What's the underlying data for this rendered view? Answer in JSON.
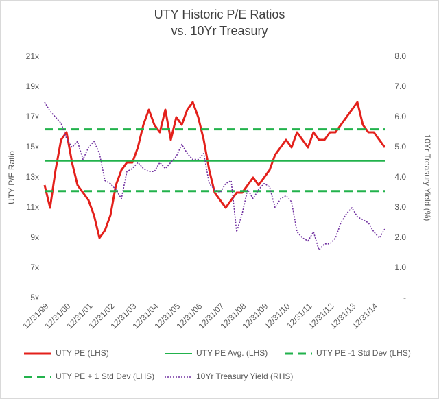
{
  "chart_data": {
    "type": "line",
    "title": "UTY Historic P/E Ratios",
    "subtitle": "vs. 10Yr Treasury",
    "y_label": "UTY P/E Ratio",
    "y2_label": "10Yr Treasury Yield (%)",
    "categories": [
      "12/31/99",
      null,
      null,
      null,
      "12/31/00",
      null,
      null,
      null,
      "12/31/01",
      null,
      null,
      null,
      "12/31/02",
      null,
      null,
      null,
      "12/31/03",
      null,
      null,
      null,
      "12/31/04",
      null,
      null,
      null,
      "12/31/05",
      null,
      null,
      null,
      "12/31/06",
      null,
      null,
      null,
      "12/31/07",
      null,
      null,
      null,
      "12/31/08",
      null,
      null,
      null,
      "12/31/09",
      null,
      null,
      null,
      "12/31/10",
      null,
      null,
      null,
      "12/31/11",
      null,
      null,
      null,
      "12/31/12",
      null,
      null,
      null,
      "12/31/13",
      null,
      null,
      null,
      "12/31/14",
      null,
      null
    ],
    "ylim": [
      5,
      21
    ],
    "yticks": [
      {
        "value": 5,
        "label": "5x"
      },
      {
        "value": 7,
        "label": "7x"
      },
      {
        "value": 9,
        "label": "9x"
      },
      {
        "value": 11,
        "label": "11x"
      },
      {
        "value": 13,
        "label": "13x"
      },
      {
        "value": 15,
        "label": "15x"
      },
      {
        "value": 17,
        "label": "17x"
      },
      {
        "value": 19,
        "label": "19x"
      },
      {
        "value": 21,
        "label": "21x"
      }
    ],
    "y2lim": [
      0,
      8
    ],
    "y2ticks": [
      {
        "value": 0,
        "label": "-"
      },
      {
        "value": 1,
        "label": "1.0"
      },
      {
        "value": 2,
        "label": "2.0"
      },
      {
        "value": 3,
        "label": "3.0"
      },
      {
        "value": 4,
        "label": "4.0"
      },
      {
        "value": 5,
        "label": "5.0"
      },
      {
        "value": 6,
        "label": "6.0"
      },
      {
        "value": 7,
        "label": "7.0"
      },
      {
        "value": 8,
        "label": "8.0"
      }
    ],
    "grid": false,
    "legend": "bottom",
    "series": [
      {
        "name": "UTY PE (LHS)",
        "color": "#e3201b",
        "style": "solid",
        "width": 3,
        "values": [
          12.5,
          11,
          13.5,
          15.5,
          16,
          14,
          12.5,
          12,
          11.5,
          10.5,
          9,
          9.5,
          10.5,
          12.5,
          13.5,
          14,
          14,
          15,
          16.5,
          17.5,
          16.5,
          16,
          17.5,
          15.5,
          17,
          16.5,
          17.5,
          18,
          17,
          15.5,
          13.5,
          12,
          11.5,
          11,
          11.5,
          12,
          12,
          12.5,
          13,
          12.5,
          13,
          13.5,
          14.5,
          15,
          15.5,
          15,
          16,
          15.5,
          15,
          16,
          15.5,
          15.5,
          16,
          16,
          16.5,
          17,
          17.5,
          18,
          16.5,
          16,
          16,
          15.5,
          15
        ]
      },
      {
        "name": "UTY PE Avg. (LHS)",
        "color": "#22b24c",
        "style": "solid",
        "width": 2,
        "values": [
          14.1,
          14.1,
          14.1,
          14.1,
          14.1,
          14.1,
          14.1,
          14.1,
          14.1,
          14.1,
          14.1,
          14.1,
          14.1,
          14.1,
          14.1,
          14.1,
          14.1,
          14.1,
          14.1,
          14.1,
          14.1,
          14.1,
          14.1,
          14.1,
          14.1,
          14.1,
          14.1,
          14.1,
          14.1,
          14.1,
          14.1,
          14.1,
          14.1,
          14.1,
          14.1,
          14.1,
          14.1,
          14.1,
          14.1,
          14.1,
          14.1,
          14.1,
          14.1,
          14.1,
          14.1,
          14.1,
          14.1,
          14.1,
          14.1,
          14.1,
          14.1,
          14.1,
          14.1,
          14.1,
          14.1,
          14.1,
          14.1,
          14.1,
          14.1,
          14.1,
          14.1,
          14.1,
          14.1
        ]
      },
      {
        "name": "UTY PE -1 Std Dev (LHS)",
        "color": "#22b24c",
        "style": "dashed",
        "width": 3,
        "values": [
          12.1,
          12.1,
          12.1,
          12.1,
          12.1,
          12.1,
          12.1,
          12.1,
          12.1,
          12.1,
          12.1,
          12.1,
          12.1,
          12.1,
          12.1,
          12.1,
          12.1,
          12.1,
          12.1,
          12.1,
          12.1,
          12.1,
          12.1,
          12.1,
          12.1,
          12.1,
          12.1,
          12.1,
          12.1,
          12.1,
          12.1,
          12.1,
          12.1,
          12.1,
          12.1,
          12.1,
          12.1,
          12.1,
          12.1,
          12.1,
          12.1,
          12.1,
          12.1,
          12.1,
          12.1,
          12.1,
          12.1,
          12.1,
          12.1,
          12.1,
          12.1,
          12.1,
          12.1,
          12.1,
          12.1,
          12.1,
          12.1,
          12.1,
          12.1,
          12.1,
          12.1,
          12.1,
          12.1
        ]
      },
      {
        "name": "UTY PE + 1 Std Dev (LHS)",
        "color": "#22b24c",
        "style": "dashed",
        "width": 3,
        "values": [
          16.2,
          16.2,
          16.2,
          16.2,
          16.2,
          16.2,
          16.2,
          16.2,
          16.2,
          16.2,
          16.2,
          16.2,
          16.2,
          16.2,
          16.2,
          16.2,
          16.2,
          16.2,
          16.2,
          16.2,
          16.2,
          16.2,
          16.2,
          16.2,
          16.2,
          16.2,
          16.2,
          16.2,
          16.2,
          16.2,
          16.2,
          16.2,
          16.2,
          16.2,
          16.2,
          16.2,
          16.2,
          16.2,
          16.2,
          16.2,
          16.2,
          16.2,
          16.2,
          16.2,
          16.2,
          16.2,
          16.2,
          16.2,
          16.2,
          16.2,
          16.2,
          16.2,
          16.2,
          16.2,
          16.2,
          16.2,
          16.2,
          16.2,
          16.2,
          16.2,
          16.2,
          16.2,
          16.2
        ]
      },
      {
        "name": "10Yr Treasury Yield (RHS)",
        "color": "#7030a0",
        "style": "dotted",
        "width": 1.6,
        "axis": "y2",
        "values": [
          6.5,
          6.2,
          6.0,
          5.8,
          5.3,
          5.0,
          5.2,
          4.6,
          5.0,
          5.2,
          4.8,
          3.9,
          3.8,
          3.6,
          3.3,
          4.2,
          4.3,
          4.5,
          4.3,
          4.2,
          4.2,
          4.5,
          4.3,
          4.5,
          4.7,
          5.1,
          4.8,
          4.6,
          4.6,
          4.8,
          3.8,
          3.6,
          3.5,
          3.8,
          3.9,
          2.2,
          2.8,
          3.6,
          3.3,
          3.6,
          3.8,
          3.7,
          3.0,
          3.3,
          3.4,
          3.2,
          2.2,
          2.0,
          1.9,
          2.2,
          1.6,
          1.8,
          1.8,
          2.0,
          2.5,
          2.8,
          3.0,
          2.7,
          2.6,
          2.5,
          2.2,
          2.0,
          2.3
        ]
      }
    ]
  }
}
